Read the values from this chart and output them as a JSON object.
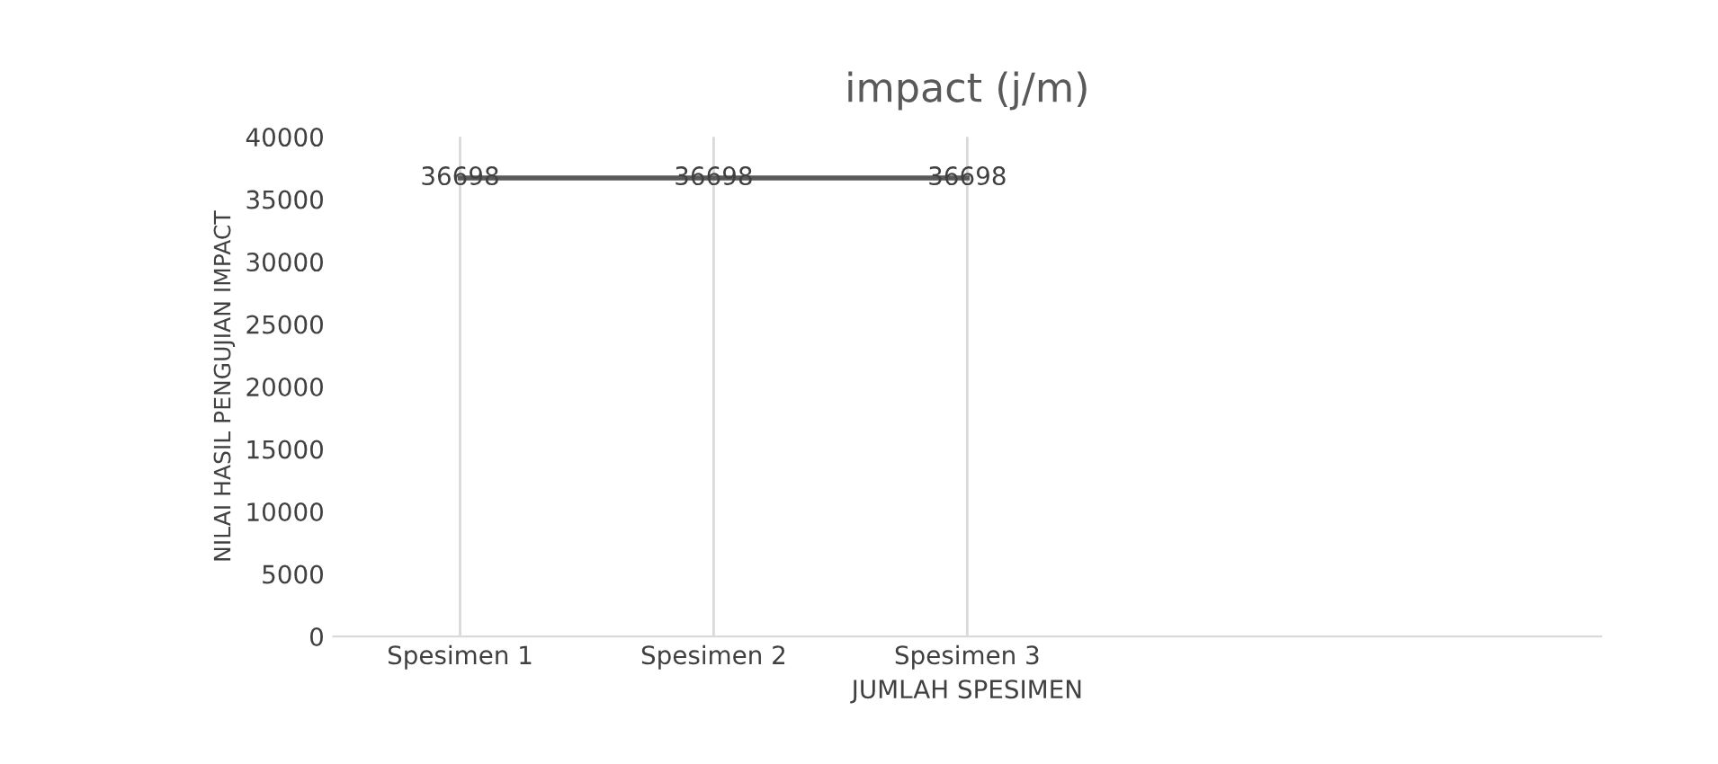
{
  "chart_data": {
    "type": "line",
    "title": "impact (j/m)",
    "xlabel": "JUMLAH SPESIMEN",
    "ylabel": "NILAI HASIL PENGUJIAN IMPACT",
    "categories": [
      "Spesimen 1",
      "Spesimen 2",
      "Spesimen 3",
      null,
      null
    ],
    "series": [
      {
        "color": "#595959",
        "values": [
          36698,
          36698,
          36698,
          null,
          null
        ]
      }
    ],
    "ylim": [
      0,
      40000
    ],
    "yticks": [
      0,
      5000,
      10000,
      15000,
      20000,
      25000,
      30000,
      35000,
      40000
    ],
    "grid": "x",
    "data_labels": true,
    "marker": "none",
    "line_style": "solid",
    "legend": false
  }
}
